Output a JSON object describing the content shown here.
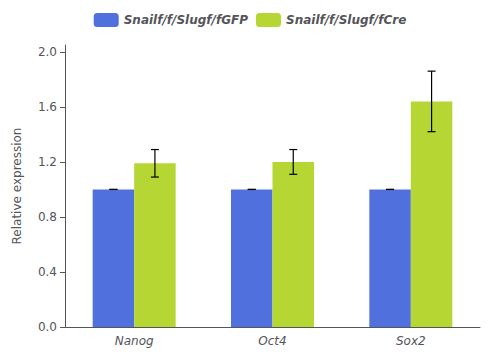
{
  "chart_data": {
    "type": "bar",
    "categories": [
      "Nanog",
      "Oct4",
      "Sox2"
    ],
    "series": [
      {
        "name": "Snailf/f/Slugf/fGFP",
        "values": [
          1.0,
          1.0,
          1.0
        ],
        "errors_low": [
          0.0,
          0.0,
          0.0
        ],
        "errors_high": [
          0.0,
          0.0,
          0.0
        ]
      },
      {
        "name": "Snailf/f/Slugf/fCre",
        "values": [
          1.19,
          1.2,
          1.64
        ],
        "errors_low": [
          0.1,
          0.09,
          0.22
        ],
        "errors_high": [
          0.1,
          0.09,
          0.22
        ]
      }
    ],
    "ylabel": "Relative expression",
    "ylim": [
      0,
      2.05
    ],
    "yticks": [
      {
        "value": 0,
        "label": "0.0"
      },
      0.4,
      0.8,
      1.2,
      1.6,
      {
        "value": 2.0,
        "label": "2.0"
      }
    ],
    "grid": false,
    "legend": "top"
  }
}
